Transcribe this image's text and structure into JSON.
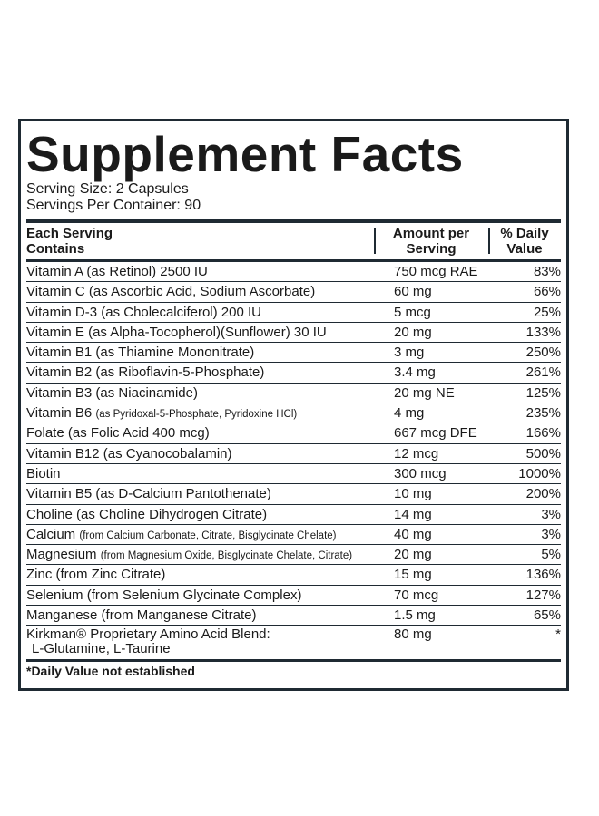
{
  "title": "Supplement Facts",
  "serving_size": "Serving Size: 2 Capsules",
  "servings_per_container": "Servings Per Container: 90",
  "header": {
    "col1_line1": "Each Serving",
    "col1_line2": "Contains",
    "col2_line1": "Amount per",
    "col2_line2": "Serving",
    "col3_line1": "% Daily",
    "col3_line2": "Value"
  },
  "rows": [
    {
      "name": "Vitamin A (as Retinol) 2500 IU",
      "detail": "",
      "amount": "750 mcg RAE",
      "dv": "83%"
    },
    {
      "name": "Vitamin C (as Ascorbic Acid, Sodium Ascorbate)",
      "detail": "",
      "amount": "60 mg",
      "dv": "66%"
    },
    {
      "name": "Vitamin D-3 (as Cholecalciferol) 200 IU",
      "detail": "",
      "amount": "5 mcg",
      "dv": "25%"
    },
    {
      "name": "Vitamin E (as Alpha-Tocopherol)(Sunflower) 30 IU",
      "detail": "",
      "amount": "20 mg",
      "dv": "133%"
    },
    {
      "name": "Vitamin B1 (as Thiamine Mononitrate)",
      "detail": "",
      "amount": "3 mg",
      "dv": "250%"
    },
    {
      "name": "Vitamin B2 (as Riboflavin-5-Phosphate)",
      "detail": "",
      "amount": "3.4 mg",
      "dv": "261%"
    },
    {
      "name": "Vitamin B3 (as Niacinamide)",
      "detail": "",
      "amount": "20 mg NE",
      "dv": "125%"
    },
    {
      "name": "Vitamin B6 ",
      "detail": "(as Pyridoxal-5-Phosphate, Pyridoxine HCl)",
      "amount": "4 mg",
      "dv": "235%"
    },
    {
      "name": "Folate (as Folic Acid 400 mcg)",
      "detail": "",
      "amount": "667 mcg DFE",
      "dv": "166%"
    },
    {
      "name": "Vitamin B12 (as Cyanocobalamin)",
      "detail": "",
      "amount": "12 mcg",
      "dv": "500%"
    },
    {
      "name": "Biotin",
      "detail": "",
      "amount": "300 mcg",
      "dv": "1000%"
    },
    {
      "name": "Vitamin B5 (as D-Calcium Pantothenate)",
      "detail": "",
      "amount": "10 mg",
      "dv": "200%"
    },
    {
      "name": "Choline (as Choline Dihydrogen Citrate)",
      "detail": "",
      "amount": "14 mg",
      "dv": "3%"
    },
    {
      "name": "Calcium ",
      "detail": "(from Calcium Carbonate, Citrate, Bisglycinate Chelate)",
      "amount": "40 mg",
      "dv": "3%"
    },
    {
      "name": "Magnesium ",
      "detail": "(from Magnesium Oxide, Bisglycinate Chelate, Citrate)",
      "amount": "20 mg",
      "dv": "5%"
    },
    {
      "name": "Zinc (from Zinc Citrate)",
      "detail": "",
      "amount": "15 mg",
      "dv": "136%"
    },
    {
      "name": "Selenium (from Selenium Glycinate Complex)",
      "detail": "",
      "amount": "70 mcg",
      "dv": "127%"
    },
    {
      "name": "Manganese (from Manganese Citrate)",
      "detail": "",
      "amount": "1.5 mg",
      "dv": "65%"
    }
  ],
  "blend": {
    "line1": "Kirkman® Proprietary Amino Acid Blend:",
    "line2": "L-Glutamine, L-Taurine",
    "amount": "80 mg",
    "dv": "*"
  },
  "footnote": "*Daily Value not established"
}
